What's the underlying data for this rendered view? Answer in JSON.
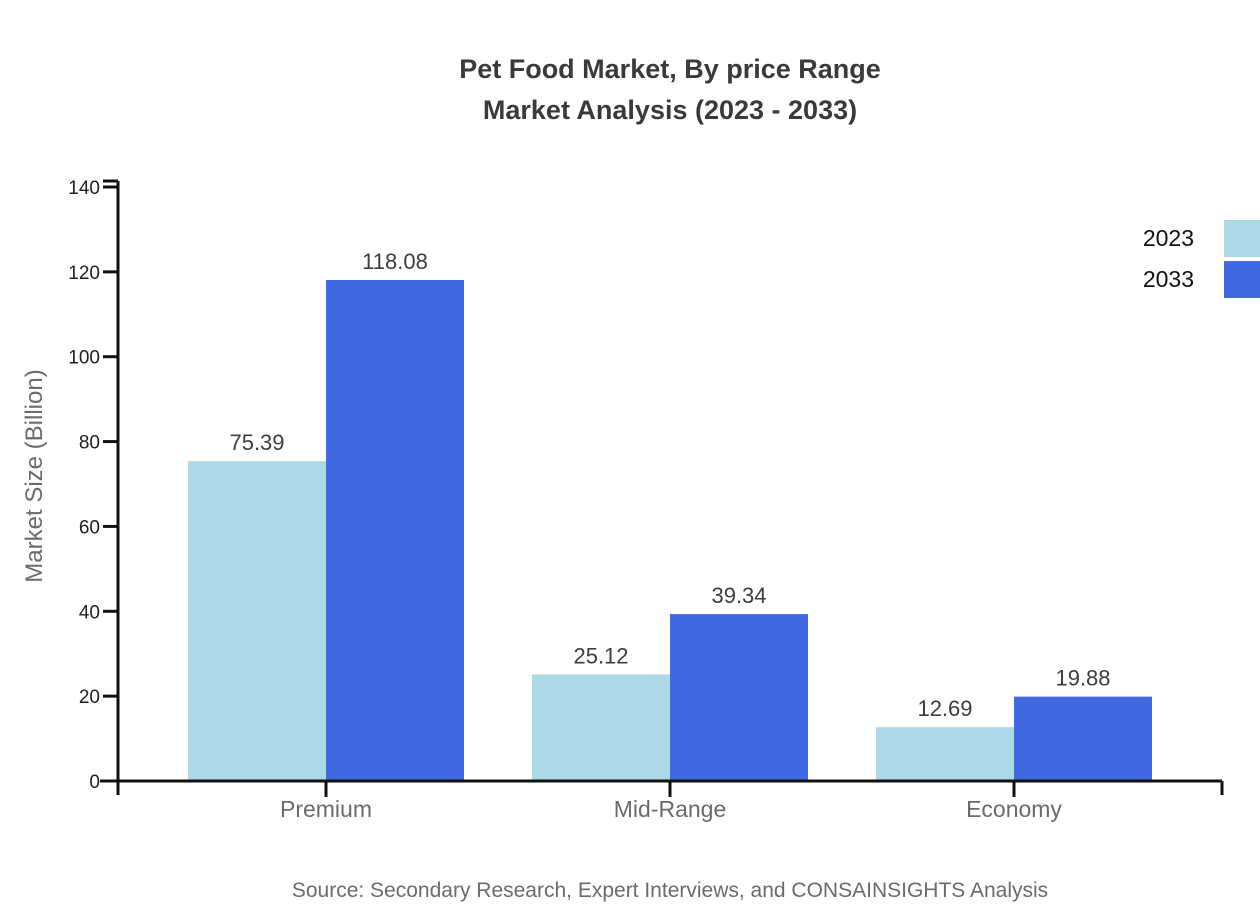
{
  "title": {
    "line1": "Pet Food Market, By price Range",
    "line2": "Market Analysis (2023 - 2033)"
  },
  "source": "Source: Secondary Research, Expert Interviews, and CONSAINSIGHTS Analysis",
  "chart_data": {
    "type": "bar",
    "categories": [
      "Premium",
      "Mid-Range",
      "Economy"
    ],
    "series": [
      {
        "name": "2023",
        "color": "#ADD8E6",
        "values": [
          75.39,
          25.12,
          12.69
        ]
      },
      {
        "name": "2033",
        "color": "#4169E1",
        "values": [
          118.08,
          39.34,
          19.88
        ]
      }
    ],
    "title": "Pet Food Market, By price Range Market Analysis (2023 - 2033)",
    "xlabel": "",
    "ylabel": "Market Size (Billion)",
    "ylim": [
      0,
      140
    ],
    "yticks": [
      0,
      20,
      40,
      60,
      80,
      100,
      120,
      140
    ],
    "grid": false,
    "value_labels": true,
    "legend_position": "top-right",
    "axis_color": "#111111",
    "value_label_color": "#3d3d3d",
    "tick_label_color": "#1f1f1f",
    "category_label_color": "#6b6b6b"
  }
}
